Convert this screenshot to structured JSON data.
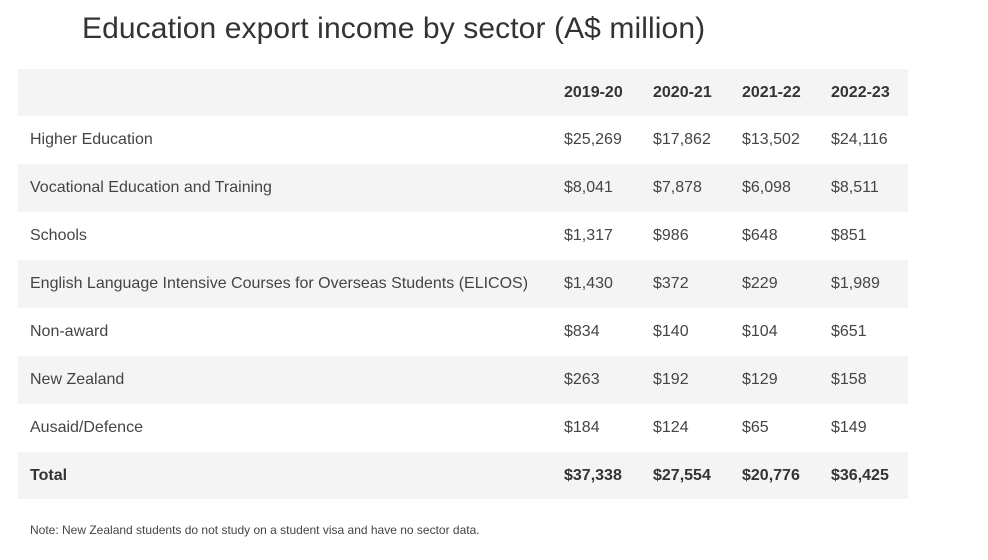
{
  "chart_data": {
    "type": "table",
    "title": "Education export income by sector (A$ million)",
    "columns": [
      "",
      "2019-20",
      "2020-21",
      "2021-22",
      "2022-23"
    ],
    "rows": [
      {
        "label": "Higher Education",
        "values": [
          "$25,269",
          "$17,862",
          "$13,502",
          "$24,116"
        ]
      },
      {
        "label": "Vocational Education and Training",
        "values": [
          "$8,041",
          "$7,878",
          "$6,098",
          "$8,511"
        ]
      },
      {
        "label": "Schools",
        "values": [
          "$1,317",
          "$986",
          "$648",
          "$851"
        ]
      },
      {
        "label": "English Language Intensive Courses for Overseas Students (ELICOS)",
        "values": [
          "$1,430",
          "$372",
          "$229",
          "$1,989"
        ]
      },
      {
        "label": "Non-award",
        "values": [
          "$834",
          "$140",
          "$104",
          "$651"
        ]
      },
      {
        "label": "New Zealand",
        "values": [
          "$263",
          "$192",
          "$129",
          "$158"
        ]
      },
      {
        "label": "Ausaid/Defence",
        "values": [
          "$184",
          "$124",
          "$65",
          "$149"
        ]
      }
    ],
    "total": {
      "label": "Total",
      "values": [
        "$37,338",
        "$27,554",
        "$20,776",
        "$36,425"
      ]
    },
    "note": "Note: New Zealand students do not study on a student visa and have no sector data."
  },
  "colors": {
    "header_bg": "#f4f4f4",
    "stripe_bg": "#f4f4f4",
    "text": "#333333"
  }
}
